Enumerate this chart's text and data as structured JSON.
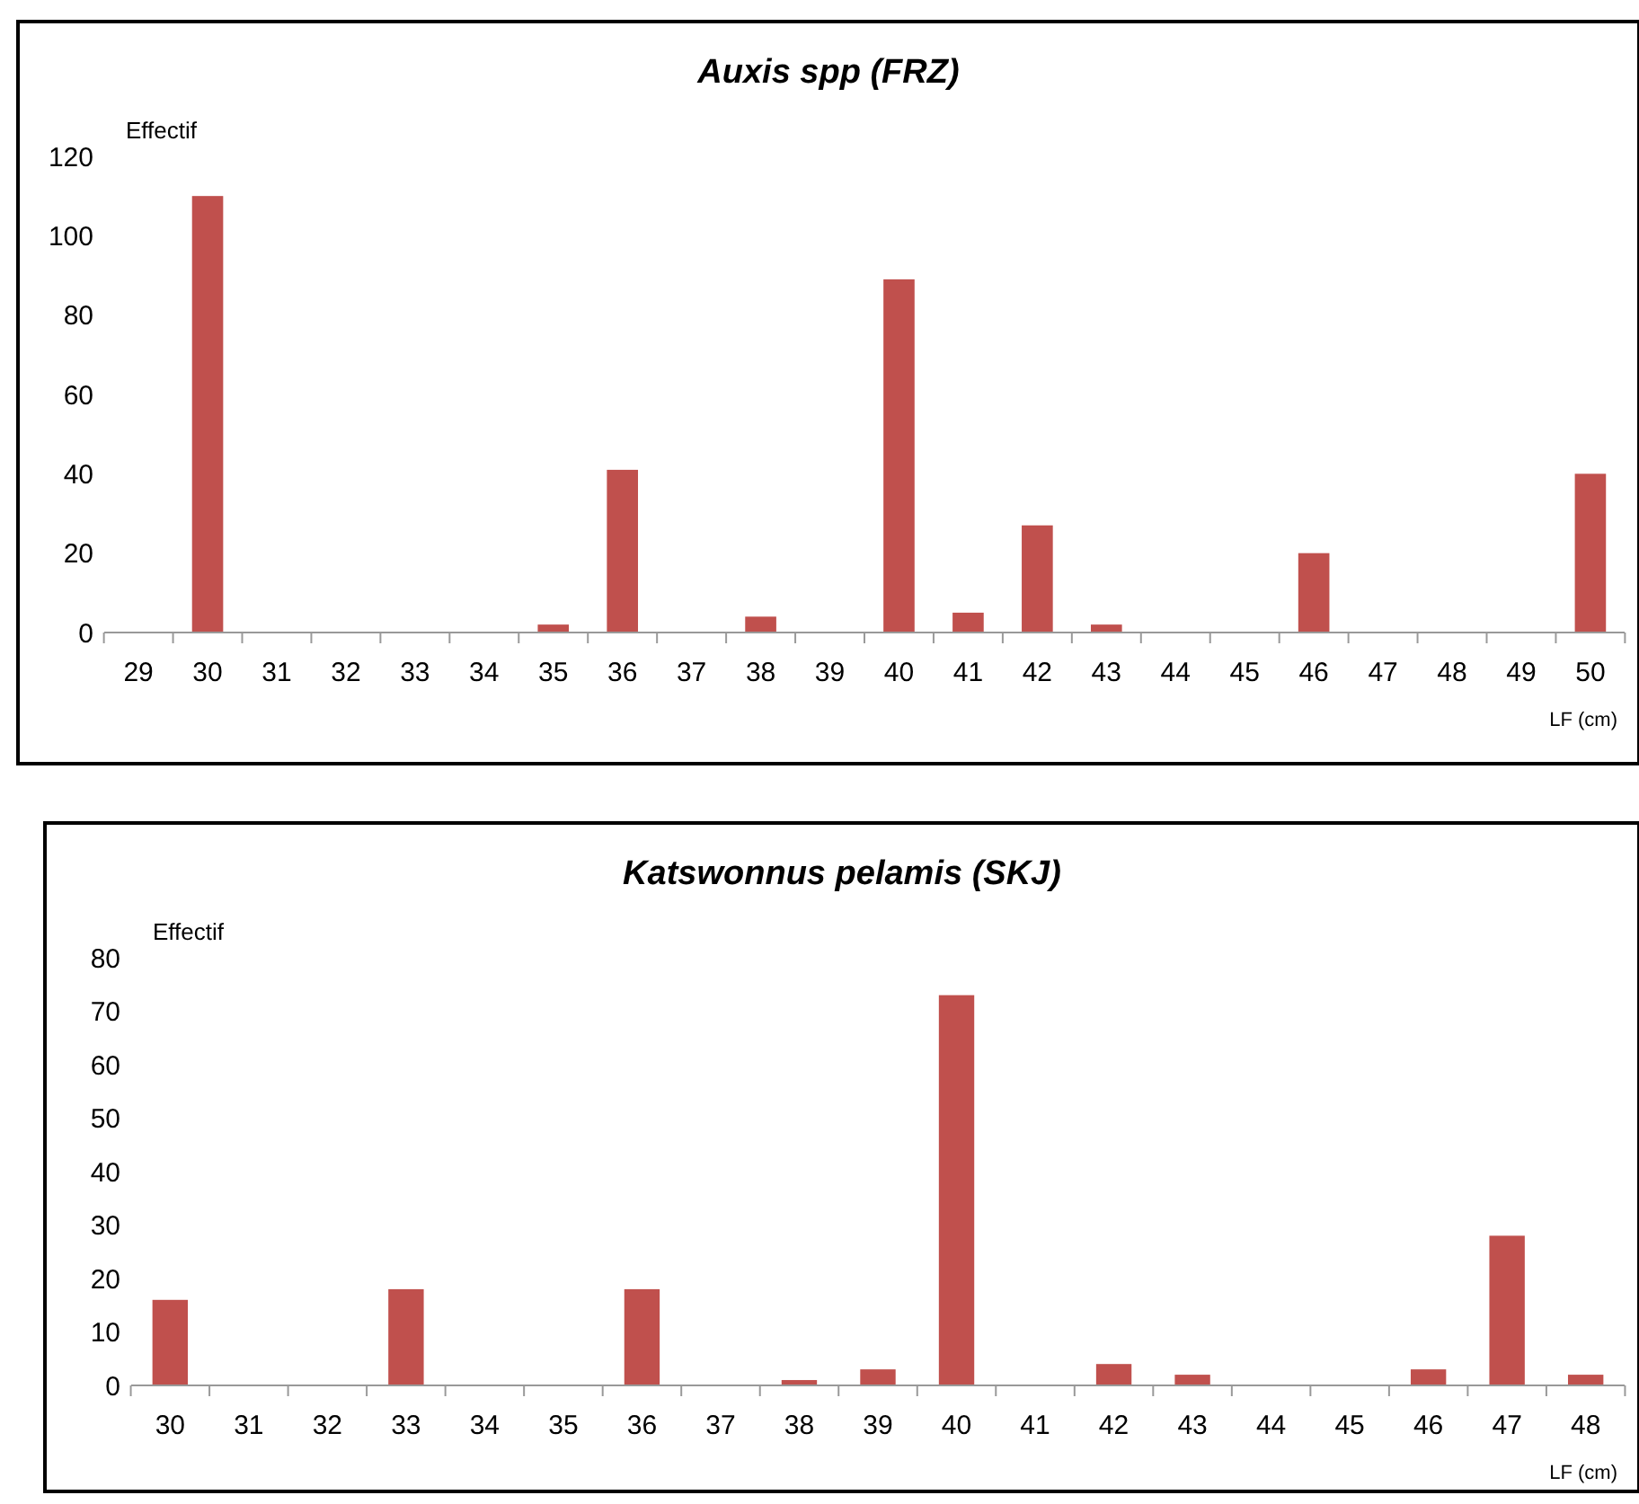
{
  "chart_data": [
    {
      "type": "bar",
      "title": "Auxis spp (FRZ)",
      "ylabel": "Effectif",
      "xlabel": "LF (cm)",
      "categories": [
        "29",
        "30",
        "31",
        "32",
        "33",
        "34",
        "35",
        "36",
        "37",
        "38",
        "39",
        "40",
        "41",
        "42",
        "43",
        "44",
        "45",
        "46",
        "47",
        "48",
        "49",
        "50"
      ],
      "values": [
        0,
        110,
        0,
        0,
        0,
        0,
        2,
        41,
        0,
        4,
        0,
        89,
        5,
        27,
        2,
        0,
        0,
        20,
        0,
        0,
        0,
        40
      ],
      "color": "#c0504d",
      "ylim": [
        0,
        120
      ],
      "yticks": [
        0,
        20,
        40,
        60,
        80,
        100,
        120
      ],
      "grid": false
    },
    {
      "type": "bar",
      "title": "Katswonnus pelamis (SKJ)",
      "ylabel": "Effectif",
      "xlabel": "LF (cm)",
      "categories": [
        "30",
        "31",
        "32",
        "33",
        "34",
        "35",
        "36",
        "37",
        "38",
        "39",
        "40",
        "41",
        "42",
        "43",
        "44",
        "45",
        "46",
        "47",
        "48"
      ],
      "values": [
        16,
        0,
        0,
        18,
        0,
        0,
        18,
        0,
        1,
        3,
        73,
        0,
        4,
        2,
        0,
        0,
        3,
        28,
        2
      ],
      "color": "#c0504d",
      "ylim": [
        0,
        80
      ],
      "yticks": [
        0,
        10,
        20,
        30,
        40,
        50,
        60,
        70,
        80
      ],
      "grid": false
    }
  ]
}
